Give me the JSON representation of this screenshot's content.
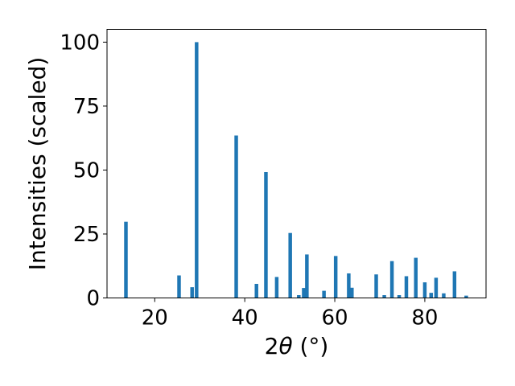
{
  "chart_data": {
    "type": "bar",
    "title": "",
    "xlabel": "2θ (°)",
    "xlabel_parts": {
      "two": "2",
      "theta": "θ",
      "unit": "(°)"
    },
    "ylabel": "Intensities (scaled)",
    "xlim": [
      9.4,
      93.6
    ],
    "ylim": [
      0,
      105
    ],
    "xticks": [
      20,
      40,
      60,
      80
    ],
    "yticks": [
      0,
      25,
      50,
      75,
      100
    ],
    "grid": false,
    "bar_color": "#1f77b4",
    "bar_width": 0.8,
    "x": [
      13.6,
      25.4,
      28.3,
      29.3,
      38.1,
      42.6,
      44.7,
      47.1,
      50.1,
      52.0,
      53.1,
      53.8,
      57.6,
      60.2,
      63.1,
      63.8,
      69.2,
      71.0,
      72.7,
      74.3,
      75.9,
      78.0,
      80.0,
      81.4,
      82.5,
      84.2,
      86.6,
      89.2
    ],
    "values": [
      29.8,
      8.8,
      4.2,
      100.0,
      63.5,
      5.5,
      49.2,
      8.2,
      25.4,
      1.1,
      3.9,
      17.0,
      2.8,
      16.4,
      9.6,
      4.0,
      9.2,
      1.1,
      14.4,
      1.1,
      8.5,
      15.7,
      6.1,
      2.0,
      7.9,
      1.8,
      10.4,
      0.9
    ]
  }
}
